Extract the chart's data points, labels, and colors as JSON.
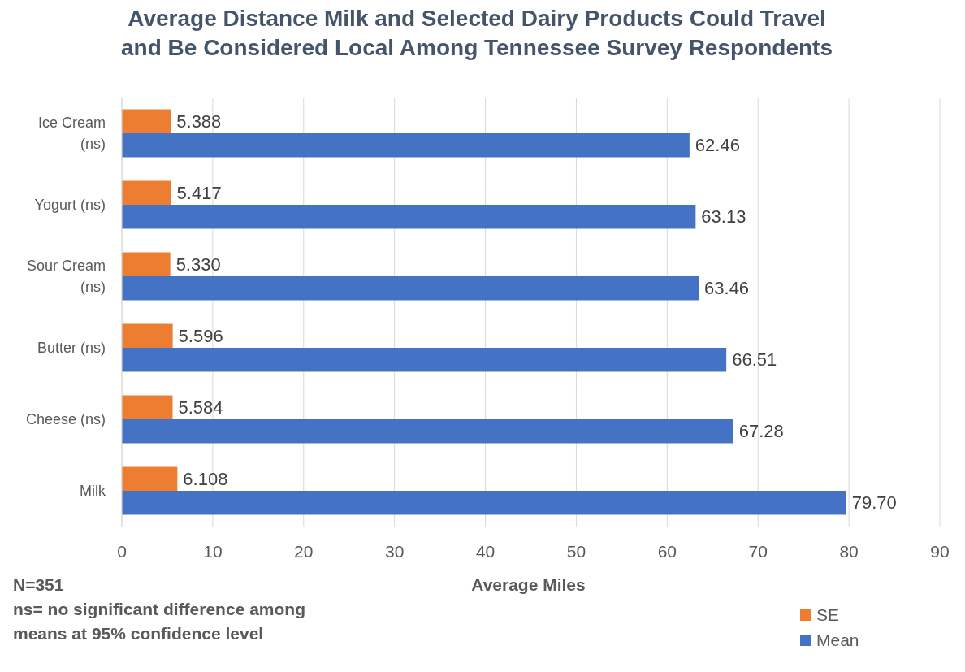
{
  "chart_data": {
    "type": "bar",
    "orientation": "horizontal",
    "title": "Average Distance Milk and Selected Dairy Products Could Travel and Be Considered Local Among Tennessee Survey Respondents",
    "xlabel": "Average Miles",
    "categories": [
      "Ice Cream (ns)",
      "Yogurt (ns)",
      "Sour Cream (ns)",
      "Butter (ns)",
      "Cheese (ns)",
      "Milk"
    ],
    "series": [
      {
        "name": "SE",
        "color": "#ed7d31",
        "values": [
          5.388,
          5.417,
          5.33,
          5.596,
          5.584,
          6.108
        ],
        "value_labels": [
          "5.388",
          "5.417",
          "5.330",
          "5.596",
          "5.584",
          "6.108"
        ]
      },
      {
        "name": "Mean",
        "color": "#4472c4",
        "values": [
          62.46,
          63.13,
          63.46,
          66.51,
          67.28,
          79.7
        ],
        "value_labels": [
          "62.46",
          "63.13",
          "63.46",
          "66.51",
          "67.28",
          "79.70"
        ]
      }
    ],
    "xlim": [
      0,
      90
    ],
    "xticks": [
      0,
      10,
      20,
      30,
      40,
      50,
      60,
      70,
      80,
      90
    ],
    "grid": "x",
    "legend": "bottom right",
    "annotations": [
      "N=351",
      "ns= no significant difference among means at 95% confidence level"
    ]
  }
}
